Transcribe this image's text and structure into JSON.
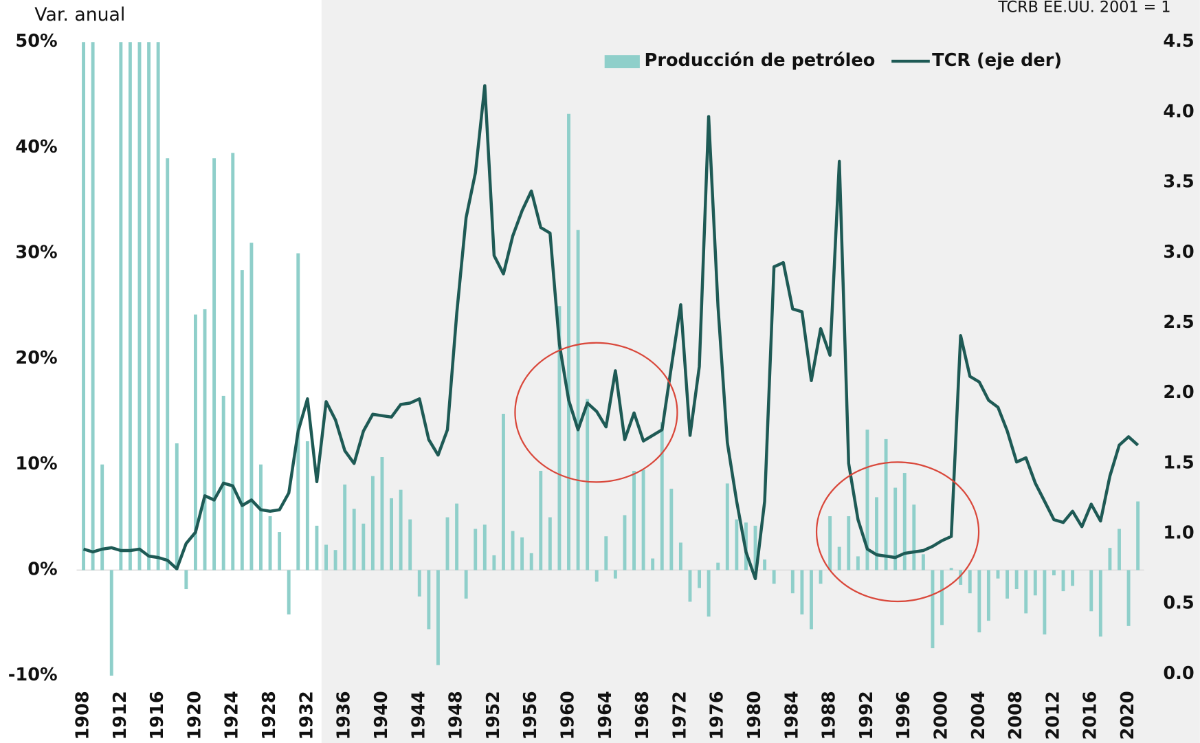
{
  "chart_data": {
    "type": "bar",
    "title": "Var. anual",
    "subtitle": "TCRB EE.UU. 2001 = 1",
    "categories": [
      1908,
      null,
      null,
      null,
      1912,
      null,
      null,
      null,
      1916,
      null,
      null,
      null,
      1920,
      null,
      null,
      null,
      1924,
      null,
      null,
      null,
      1928,
      null,
      null,
      null,
      1932,
      null,
      null,
      null,
      1936,
      null,
      null,
      null,
      1940,
      null,
      null,
      null,
      1944,
      null,
      null,
      null,
      1948,
      null,
      null,
      null,
      1952,
      null,
      null,
      null,
      1956,
      null,
      null,
      null,
      1960,
      null,
      null,
      null,
      1964,
      null,
      null,
      null,
      1968,
      null,
      null,
      null,
      1972,
      null,
      null,
      null,
      1976,
      null,
      null,
      null,
      1980,
      null,
      null,
      null,
      1984,
      null,
      null,
      null,
      1988,
      null,
      null,
      null,
      1992,
      null,
      null,
      null,
      1996,
      null,
      null,
      null,
      2000,
      null,
      null,
      null,
      2004,
      null,
      null,
      null,
      2008,
      null,
      null,
      null,
      2012,
      null,
      null,
      null,
      2016,
      null,
      null,
      null,
      2020,
      null
    ],
    "series": [
      {
        "name": "Producción de petróleo",
        "type": "bar",
        "color": "#8fcfca",
        "values": [
          50,
          50,
          10,
          -10,
          50,
          50,
          50,
          50,
          50,
          39,
          12,
          -1.8,
          24.2,
          24.7,
          39,
          16.5,
          39.5,
          28.4,
          31,
          10,
          5.1,
          3.6,
          -4.2,
          30,
          12.2,
          4.2,
          2.4,
          1.9,
          8.1,
          5.8,
          4.4,
          8.9,
          10.7,
          6.8,
          7.6,
          4.8,
          -2.5,
          -5.6,
          -9,
          5,
          6.3,
          -2.7,
          3.9,
          4.3,
          1.4,
          14.8,
          3.7,
          3.1,
          1.6,
          9.4,
          5,
          25,
          43.2,
          32.2,
          16.2,
          -1.1,
          3.2,
          -0.8,
          5.2,
          9.4,
          9.5,
          1.1,
          14,
          7.7,
          2.6,
          -3,
          -1.7,
          -4.4,
          0.7,
          8.2,
          4.8,
          4.5,
          4.2,
          1,
          -1.3,
          0,
          -2.2,
          -4.2,
          -5.6,
          -1.3,
          5.1,
          2.2,
          5.1,
          1.3,
          13.3,
          6.9,
          12.4,
          7.8,
          9.2,
          6.2,
          1.5,
          -7.4,
          -5.2,
          0.2,
          -1.4,
          -2.2,
          -5.9,
          -4.8,
          -0.8,
          -2.7,
          -1.8,
          -4.1,
          -2.4,
          -6.1,
          -0.5,
          -2,
          -1.5,
          0,
          -3.9,
          -6.3,
          2.1,
          3.9,
          -5.3,
          6.5
        ]
      },
      {
        "name": "TCR (eje der)",
        "type": "line",
        "axis": "y2",
        "color": "#1e5a55",
        "values": [
          0.89,
          0.87,
          0.89,
          0.9,
          0.88,
          0.88,
          0.89,
          0.84,
          0.83,
          0.81,
          0.75,
          0.93,
          1.01,
          1.27,
          1.24,
          1.36,
          1.34,
          1.2,
          1.24,
          1.17,
          1.16,
          1.17,
          1.29,
          1.73,
          1.96,
          1.37,
          1.94,
          1.81,
          1.59,
          1.5,
          1.73,
          1.85,
          1.84,
          1.83,
          1.92,
          1.93,
          1.96,
          1.67,
          1.56,
          1.74,
          2.57,
          3.25,
          3.57,
          4.19,
          2.98,
          2.85,
          3.12,
          3.3,
          3.44,
          3.18,
          3.14,
          2.35,
          1.95,
          1.74,
          1.93,
          1.87,
          1.76,
          2.16,
          1.67,
          1.86,
          1.66,
          1.7,
          1.74,
          2.19,
          2.63,
          1.7,
          2.19,
          3.97,
          2.62,
          1.65,
          1.23,
          0.87,
          0.68,
          1.23,
          2.9,
          2.93,
          2.6,
          2.58,
          2.09,
          2.46,
          2.27,
          3.65,
          1.5,
          1.1,
          0.89,
          0.85,
          0.84,
          0.83,
          0.86,
          0.87,
          0.88,
          0.91,
          0.95,
          0.98,
          2.41,
          2.12,
          2.08,
          1.95,
          1.9,
          1.73,
          1.51,
          1.54,
          1.36,
          1.23,
          1.1,
          1.08,
          1.16,
          1.05,
          1.21,
          1.09,
          1.41,
          1.63,
          1.69,
          1.63
        ]
      }
    ],
    "ylim": [
      -10,
      50
    ],
    "yticks": [
      {
        "value": -10,
        "label": "-10%"
      },
      {
        "value": 0,
        "label": "0%"
      },
      {
        "value": 10,
        "label": "10%"
      },
      {
        "value": 20,
        "label": "20%"
      },
      {
        "value": 30,
        "label": "30%"
      },
      {
        "value": 40,
        "label": "40%"
      },
      {
        "value": 50,
        "label": "50%"
      }
    ],
    "y2lim": [
      0,
      4.5
    ],
    "y2ticks": [
      {
        "value": 0,
        "label": "0.0"
      },
      {
        "value": 0.5,
        "label": "0.5"
      },
      {
        "value": 1,
        "label": "1.0"
      },
      {
        "value": 1.5,
        "label": "1.5"
      },
      {
        "value": 2,
        "label": "2.0"
      },
      {
        "value": 2.5,
        "label": "2.5"
      },
      {
        "value": 3,
        "label": "3.0"
      },
      {
        "value": 3.5,
        "label": "3.5"
      },
      {
        "value": 4,
        "label": "4.0"
      },
      {
        "value": 4.5,
        "label": "4.5"
      }
    ],
    "legend": "top",
    "grid": false
  }
}
